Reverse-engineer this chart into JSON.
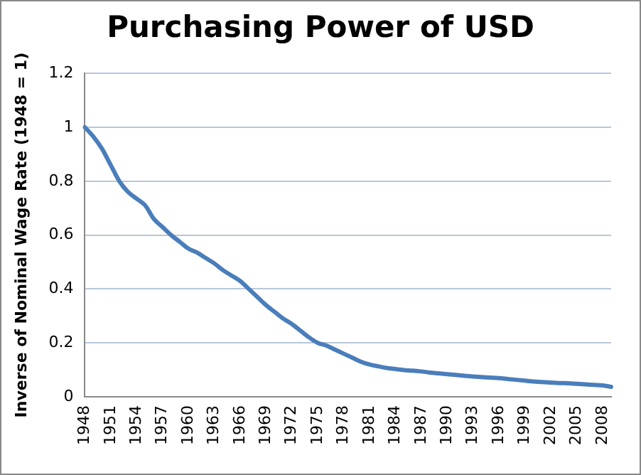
{
  "chart_data": {
    "type": "line",
    "title": "Purchasing Power of USD",
    "ylabel": "Inverse of Nominal Wage Rate (1948 = 1)",
    "categories": [
      "1948",
      null,
      null,
      "1951",
      null,
      null,
      "1954",
      null,
      null,
      "1957",
      null,
      null,
      "1960",
      null,
      null,
      "1963",
      null,
      null,
      "1966",
      null,
      null,
      "1969",
      null,
      null,
      "1972",
      null,
      null,
      "1975",
      null,
      null,
      "1978",
      null,
      null,
      "1981",
      null,
      null,
      "1984",
      null,
      null,
      "1987",
      null,
      null,
      "1990",
      null,
      null,
      "1993",
      null,
      null,
      "1996",
      null,
      null,
      "1999",
      null,
      null,
      "2002",
      null,
      null,
      "2005",
      null,
      null,
      "2008",
      null
    ],
    "series": [
      {
        "color": "#4a7ebb",
        "values": [
          1.0,
          0.965,
          0.92,
          0.86,
          0.8,
          0.76,
          0.735,
          0.71,
          0.66,
          0.63,
          0.6,
          0.575,
          0.55,
          0.535,
          0.515,
          0.495,
          0.47,
          0.45,
          0.43,
          0.4,
          0.37,
          0.34,
          0.315,
          0.29,
          0.27,
          0.245,
          0.22,
          0.2,
          0.19,
          0.175,
          0.16,
          0.145,
          0.13,
          0.12,
          0.113,
          0.107,
          0.103,
          0.099,
          0.097,
          0.094,
          0.09,
          0.087,
          0.084,
          0.081,
          0.078,
          0.075,
          0.073,
          0.071,
          0.069,
          0.066,
          0.063,
          0.06,
          0.057,
          0.055,
          0.053,
          0.051,
          0.05,
          0.048,
          0.046,
          0.044,
          0.042,
          0.037
        ]
      }
    ],
    "ylim": [
      0,
      1.2
    ],
    "yticks": [
      0,
      0.2,
      0.4,
      0.6,
      0.8,
      1,
      1.2
    ],
    "grid": "y",
    "legend": false,
    "marker": "none",
    "line_style": "solid"
  }
}
